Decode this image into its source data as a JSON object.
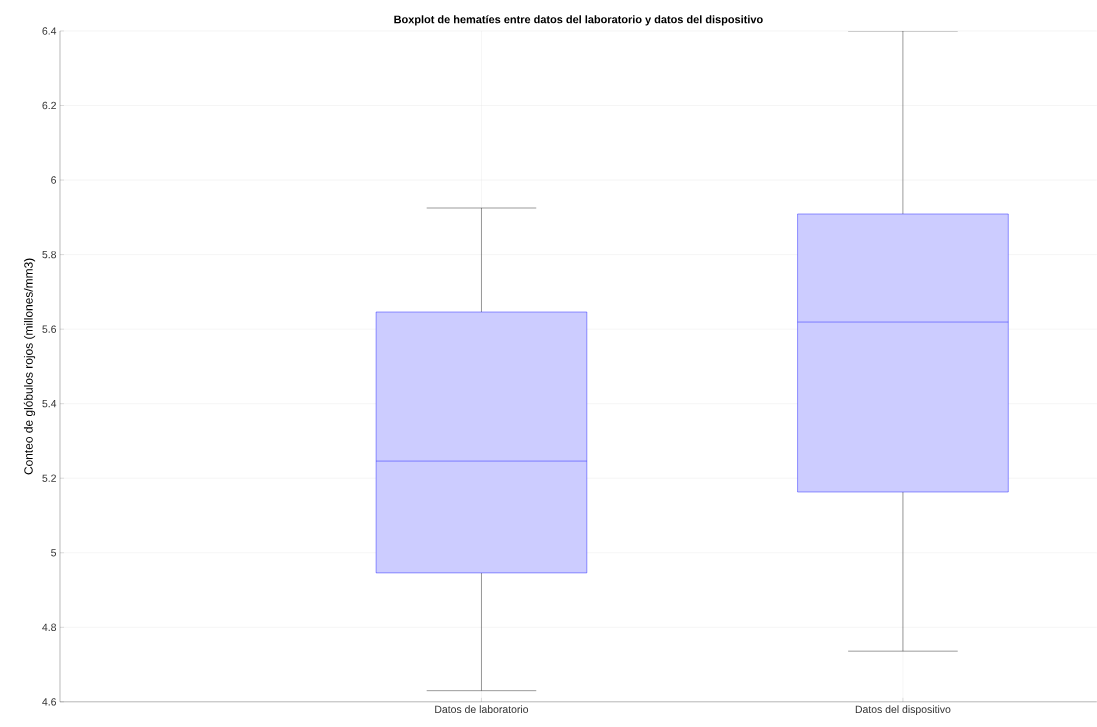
{
  "chart_data": {
    "type": "box",
    "title": "Boxplot de hematíes entre datos del laboratorio y datos del dispositivo",
    "ylabel": "Conteo de glóbulos rojos (millones/mm3)",
    "categories": [
      "Datos de laboratorio",
      "Datos del dispositivo"
    ],
    "color": "#0000ff",
    "boxes": [
      {
        "low": 4.63,
        "q1": 4.946,
        "median": 5.246,
        "q3": 5.646,
        "high": 5.925
      },
      {
        "low": 4.736,
        "q1": 5.163,
        "median": 5.619,
        "q3": 5.909,
        "high": 6.4
      }
    ],
    "ylim": [
      4.6,
      6.4
    ],
    "yticks": [
      4.6,
      4.8,
      5,
      5.2,
      5.4,
      5.6,
      5.8,
      6,
      6.2,
      6.4
    ],
    "grid": true
  }
}
